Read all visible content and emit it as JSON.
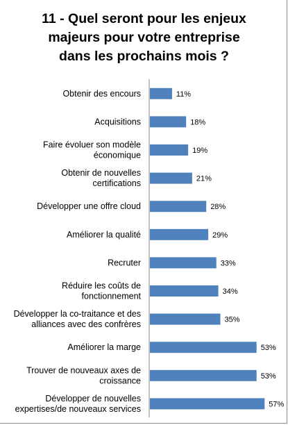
{
  "title_lines": [
    "11 - Quel seront pour les enjeux",
    "majeurs pour votre entreprise",
    "dans les prochains mois ?"
  ],
  "chart_data": {
    "type": "bar",
    "orientation": "horizontal",
    "categories": [
      [
        "Obtenir des encours"
      ],
      [
        "Acquisitions"
      ],
      [
        "Faire évoluer son modèle",
        "économique"
      ],
      [
        "Obtenir de nouvelles",
        "certifications"
      ],
      [
        "Développer une offre cloud"
      ],
      [
        "Améliorer la qualité"
      ],
      [
        "Recruter"
      ],
      [
        "Réduire les coûts de",
        "fonctionnement"
      ],
      [
        "Développer la co-traitance et des",
        "alliances avec des confrères"
      ],
      [
        "Améliorer la marge"
      ],
      [
        "Trouver de nouveaux axes de",
        "croissance"
      ],
      [
        "Développer de nouvelles",
        "expertises/de nouveaux services"
      ]
    ],
    "values": [
      11,
      18,
      19,
      21,
      28,
      29,
      33,
      34,
      35,
      53,
      53,
      57
    ],
    "value_labels": [
      "11%",
      "18%",
      "19%",
      "21%",
      "28%",
      "29%",
      "33%",
      "34%",
      "35%",
      "53%",
      "53%",
      "57%"
    ],
    "bar_color": "#4f81bd",
    "grid": false,
    "legend": "none"
  }
}
